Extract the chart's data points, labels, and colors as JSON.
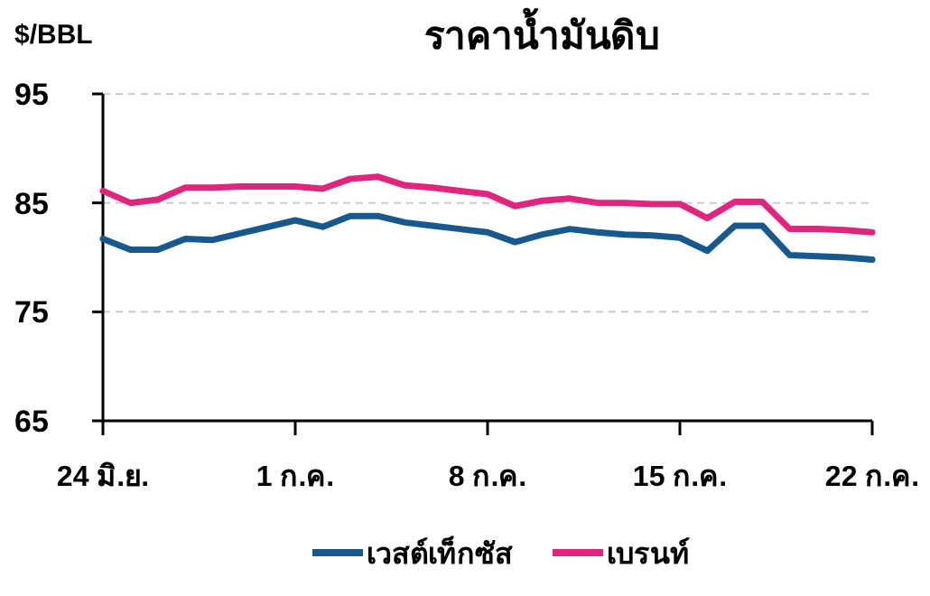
{
  "chart_data": {
    "type": "line",
    "title": "ราคาน้ำมันดิบ",
    "ylabel": "$/BBL",
    "x": [
      "--06-24",
      "--06-25",
      "--06-26",
      "--06-27",
      "--06-28",
      "--06-29",
      "--06-30",
      "--07-01",
      "--07-02",
      "--07-03",
      "--07-04",
      "--07-05",
      "--07-06",
      "--07-07",
      "--07-08",
      "--07-09",
      "--07-10",
      "--07-11",
      "--07-12",
      "--07-13",
      "--07-14",
      "--07-15",
      "--07-16",
      "--07-17",
      "--07-18",
      "--07-19",
      "--07-20",
      "--07-21",
      "--07-22"
    ],
    "series": [
      {
        "name": "เวสต์เท็กซัส",
        "color": "#17598c",
        "values": [
          81.7,
          80.7,
          80.7,
          81.7,
          81.6,
          82.2,
          82.8,
          83.4,
          82.8,
          83.8,
          83.8,
          83.2,
          82.9,
          82.6,
          82.3,
          81.4,
          82.1,
          82.6,
          82.3,
          82.1,
          82.0,
          81.8,
          80.6,
          82.9,
          82.9,
          80.2,
          80.1,
          80.0,
          79.8
        ]
      },
      {
        "name": "เบรนท์",
        "color": "#e0257f",
        "values": [
          86.1,
          85.0,
          85.3,
          86.4,
          86.4,
          86.5,
          86.5,
          86.5,
          86.3,
          87.2,
          87.4,
          86.6,
          86.4,
          86.1,
          85.8,
          84.7,
          85.2,
          85.4,
          85.0,
          85.0,
          84.9,
          84.9,
          83.6,
          85.1,
          85.1,
          82.6,
          82.6,
          82.5,
          82.3
        ]
      }
    ],
    "xlim": [
      "--06-24",
      "--07-22"
    ],
    "xticks": [
      {
        "value": "--06-24",
        "label": "24 มิ.ย."
      },
      {
        "value": "--07-01",
        "label": "1 ก.ค."
      },
      {
        "value": "--07-08",
        "label": "8 ก.ค."
      },
      {
        "value": "--07-15",
        "label": "15 ก.ค."
      },
      {
        "value": "--07-22",
        "label": "22 ก.ค."
      }
    ],
    "ylim": [
      65,
      95
    ],
    "yticks": [
      65,
      75,
      85,
      95
    ],
    "grid": "y",
    "legend": "bottom"
  }
}
